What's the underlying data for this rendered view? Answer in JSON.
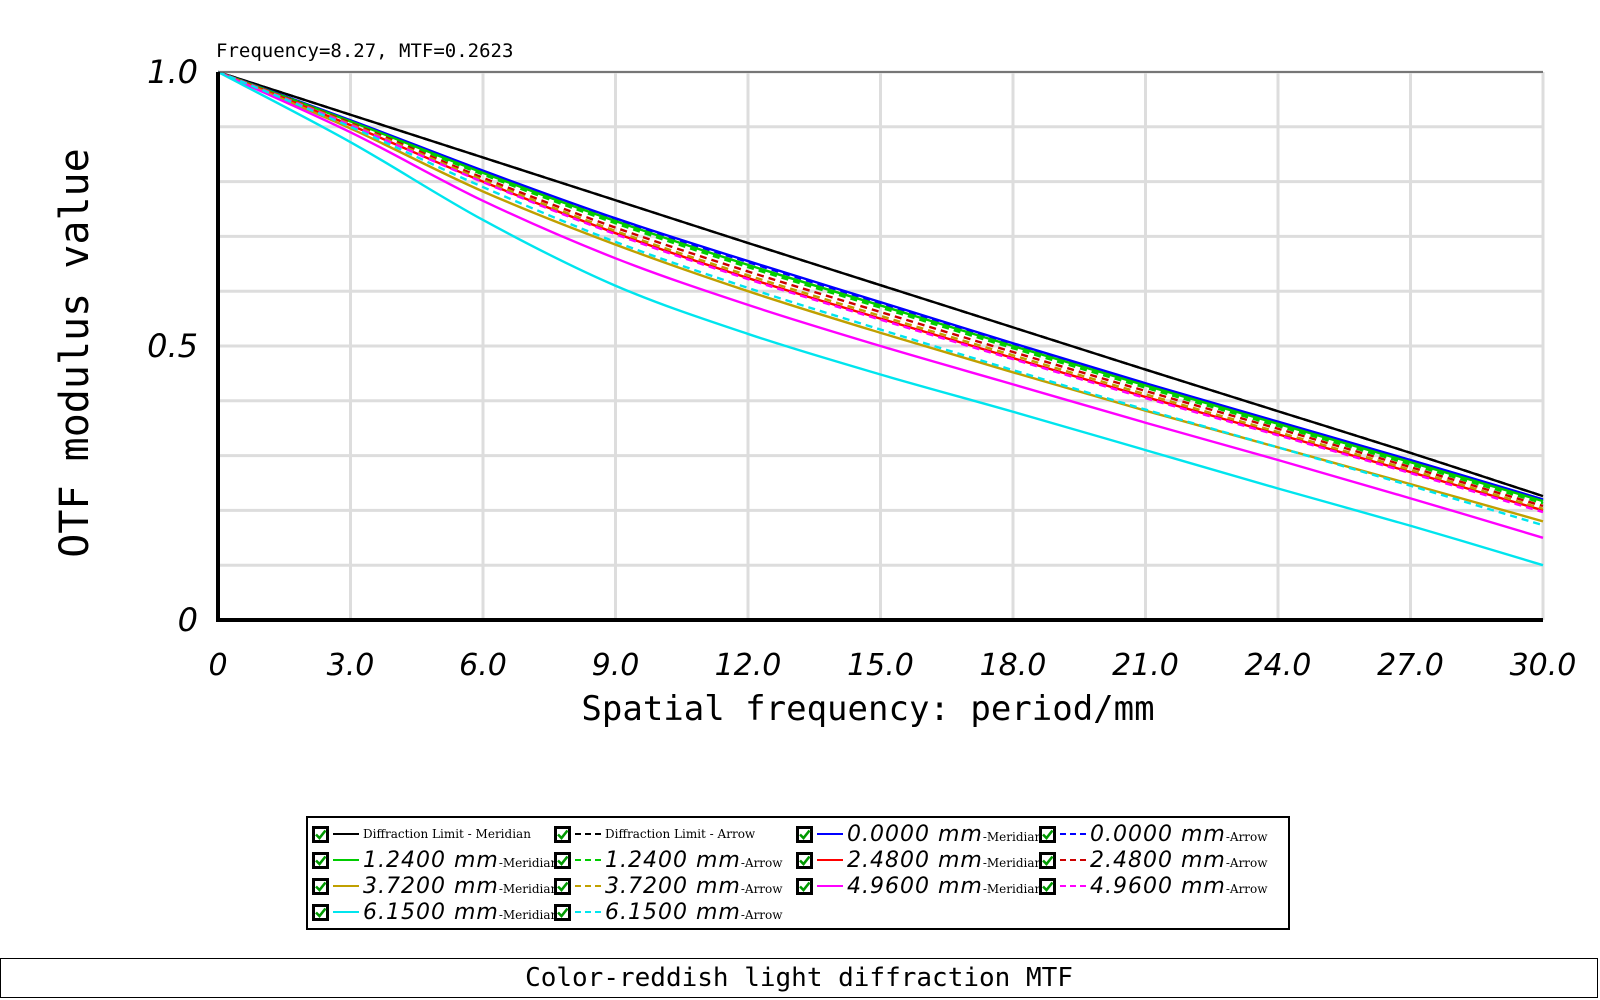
{
  "readout": "Frequency=8.27, MTF=0.2623",
  "footer_title": "Color-reddish light diffraction MTF",
  "legend": [
    {
      "prefix": "",
      "label": "Diffraction Limit - Meridian",
      "color": "#000000",
      "dash": false,
      "big": false
    },
    {
      "prefix": "",
      "label": "Diffraction Limit - Arrow",
      "color": "#000000",
      "dash": true,
      "big": false
    },
    {
      "prefix": "0.0000 mm",
      "label": "-Meridian",
      "color": "#0000ff",
      "dash": false,
      "big": true
    },
    {
      "prefix": "0.0000 mm",
      "label": "-Arrow",
      "color": "#0000ff",
      "dash": true,
      "big": true
    },
    {
      "prefix": "1.2400 mm",
      "label": "-Meridian",
      "color": "#00cc00",
      "dash": false,
      "big": true
    },
    {
      "prefix": "1.2400 mm",
      "label": "-Arrow",
      "color": "#00cc00",
      "dash": true,
      "big": true
    },
    {
      "prefix": "2.4800 mm",
      "label": "-Meridian",
      "color": "#ff0000",
      "dash": false,
      "big": true
    },
    {
      "prefix": "2.4800 mm",
      "label": "-Arrow",
      "color": "#cc0000",
      "dash": true,
      "big": true
    },
    {
      "prefix": "3.7200 mm",
      "label": "-Meridian",
      "color": "#c0a000",
      "dash": false,
      "big": true
    },
    {
      "prefix": "3.7200 mm",
      "label": "-Arrow",
      "color": "#c0a000",
      "dash": true,
      "big": true
    },
    {
      "prefix": "4.9600 mm",
      "label": "-Meridian",
      "color": "#ff00ff",
      "dash": false,
      "big": true
    },
    {
      "prefix": "4.9600 mm",
      "label": "-Arrow",
      "color": "#ff00ff",
      "dash": true,
      "big": true
    },
    {
      "prefix": "6.1500 mm",
      "label": "-Meridian",
      "color": "#00e5ee",
      "dash": false,
      "big": true
    },
    {
      "prefix": "6.1500 mm",
      "label": "-Arrow",
      "color": "#00e5ee",
      "dash": true,
      "big": true
    }
  ],
  "chart_data": {
    "type": "line",
    "title": "",
    "xlabel": "Spatial frequency: period/mm",
    "ylabel": "OTF modulus value",
    "xlim": [
      0,
      30
    ],
    "ylim": [
      0,
      1
    ],
    "x_ticks": [
      "0",
      "3.0",
      "6.0",
      "9.0",
      "12.0",
      "15.0",
      "18.0",
      "21.0",
      "24.0",
      "27.0",
      "30.0"
    ],
    "y_ticks": [
      "0",
      "0.5",
      "1.0"
    ],
    "grid": true,
    "x": [
      0,
      3,
      6,
      9,
      12,
      15,
      18,
      21,
      24,
      27,
      30
    ],
    "series": [
      {
        "name": "Diffraction Limit - Meridian",
        "color": "#000000",
        "dash": false,
        "values": [
          1.0,
          0.922,
          0.844,
          0.766,
          0.688,
          0.611,
          0.534,
          0.457,
          0.381,
          0.305,
          0.226
        ]
      },
      {
        "name": "Diffraction Limit - Arrow",
        "color": "#000000",
        "dash": true,
        "values": [
          1.0,
          0.922,
          0.844,
          0.766,
          0.688,
          0.611,
          0.534,
          0.457,
          0.381,
          0.305,
          0.226
        ]
      },
      {
        "name": "0.0000 mm-Meridian",
        "color": "#0000ff",
        "dash": false,
        "values": [
          1.0,
          0.912,
          0.82,
          0.733,
          0.655,
          0.58,
          0.505,
          0.432,
          0.362,
          0.292,
          0.22
        ]
      },
      {
        "name": "0.0000 mm-Arrow",
        "color": "#0000ff",
        "dash": true,
        "values": [
          1.0,
          0.911,
          0.818,
          0.731,
          0.653,
          0.578,
          0.503,
          0.43,
          0.36,
          0.29,
          0.218
        ]
      },
      {
        "name": "1.2400 mm-Meridian",
        "color": "#00cc00",
        "dash": false,
        "values": [
          1.0,
          0.91,
          0.816,
          0.728,
          0.648,
          0.574,
          0.5,
          0.428,
          0.358,
          0.288,
          0.217
        ]
      },
      {
        "name": "1.2400 mm-Arrow",
        "color": "#00cc00",
        "dash": true,
        "values": [
          1.0,
          0.909,
          0.813,
          0.724,
          0.644,
          0.57,
          0.496,
          0.424,
          0.354,
          0.284,
          0.213
        ]
      },
      {
        "name": "2.4800 mm-Meridian",
        "color": "#ff0000",
        "dash": false,
        "values": [
          1.0,
          0.903,
          0.8,
          0.706,
          0.624,
          0.55,
          0.478,
          0.407,
          0.339,
          0.27,
          0.2
        ]
      },
      {
        "name": "2.4800 mm-Arrow",
        "color": "#cc0000",
        "dash": true,
        "values": [
          1.0,
          0.907,
          0.807,
          0.716,
          0.636,
          0.562,
          0.489,
          0.418,
          0.349,
          0.279,
          0.208
        ]
      },
      {
        "name": "3.7200 mm-Meridian",
        "color": "#c0a000",
        "dash": false,
        "values": [
          1.0,
          0.897,
          0.782,
          0.685,
          0.6,
          0.524,
          0.452,
          0.382,
          0.315,
          0.248,
          0.18
        ]
      },
      {
        "name": "3.7200 mm-Arrow",
        "color": "#c0a000",
        "dash": true,
        "values": [
          1.0,
          0.905,
          0.803,
          0.71,
          0.629,
          0.555,
          0.483,
          0.412,
          0.343,
          0.274,
          0.203
        ]
      },
      {
        "name": "4.9600 mm-Meridian",
        "color": "#ff00ff",
        "dash": false,
        "values": [
          1.0,
          0.89,
          0.765,
          0.66,
          0.575,
          0.5,
          0.43,
          0.36,
          0.292,
          0.222,
          0.15
        ]
      },
      {
        "name": "4.9600 mm-Arrow",
        "color": "#ff00ff",
        "dash": true,
        "values": [
          1.0,
          0.903,
          0.799,
          0.704,
          0.622,
          0.548,
          0.476,
          0.405,
          0.337,
          0.268,
          0.197
        ]
      },
      {
        "name": "6.1500 mm-Meridian",
        "color": "#00e5ee",
        "dash": false,
        "values": [
          1.0,
          0.872,
          0.73,
          0.61,
          0.522,
          0.448,
          0.38,
          0.31,
          0.24,
          0.172,
          0.1
        ]
      },
      {
        "name": "6.1500 mm-Arrow",
        "color": "#00e5ee",
        "dash": true,
        "values": [
          1.0,
          0.9,
          0.79,
          0.69,
          0.606,
          0.53,
          0.456,
          0.384,
          0.315,
          0.245,
          0.173
        ]
      }
    ]
  }
}
